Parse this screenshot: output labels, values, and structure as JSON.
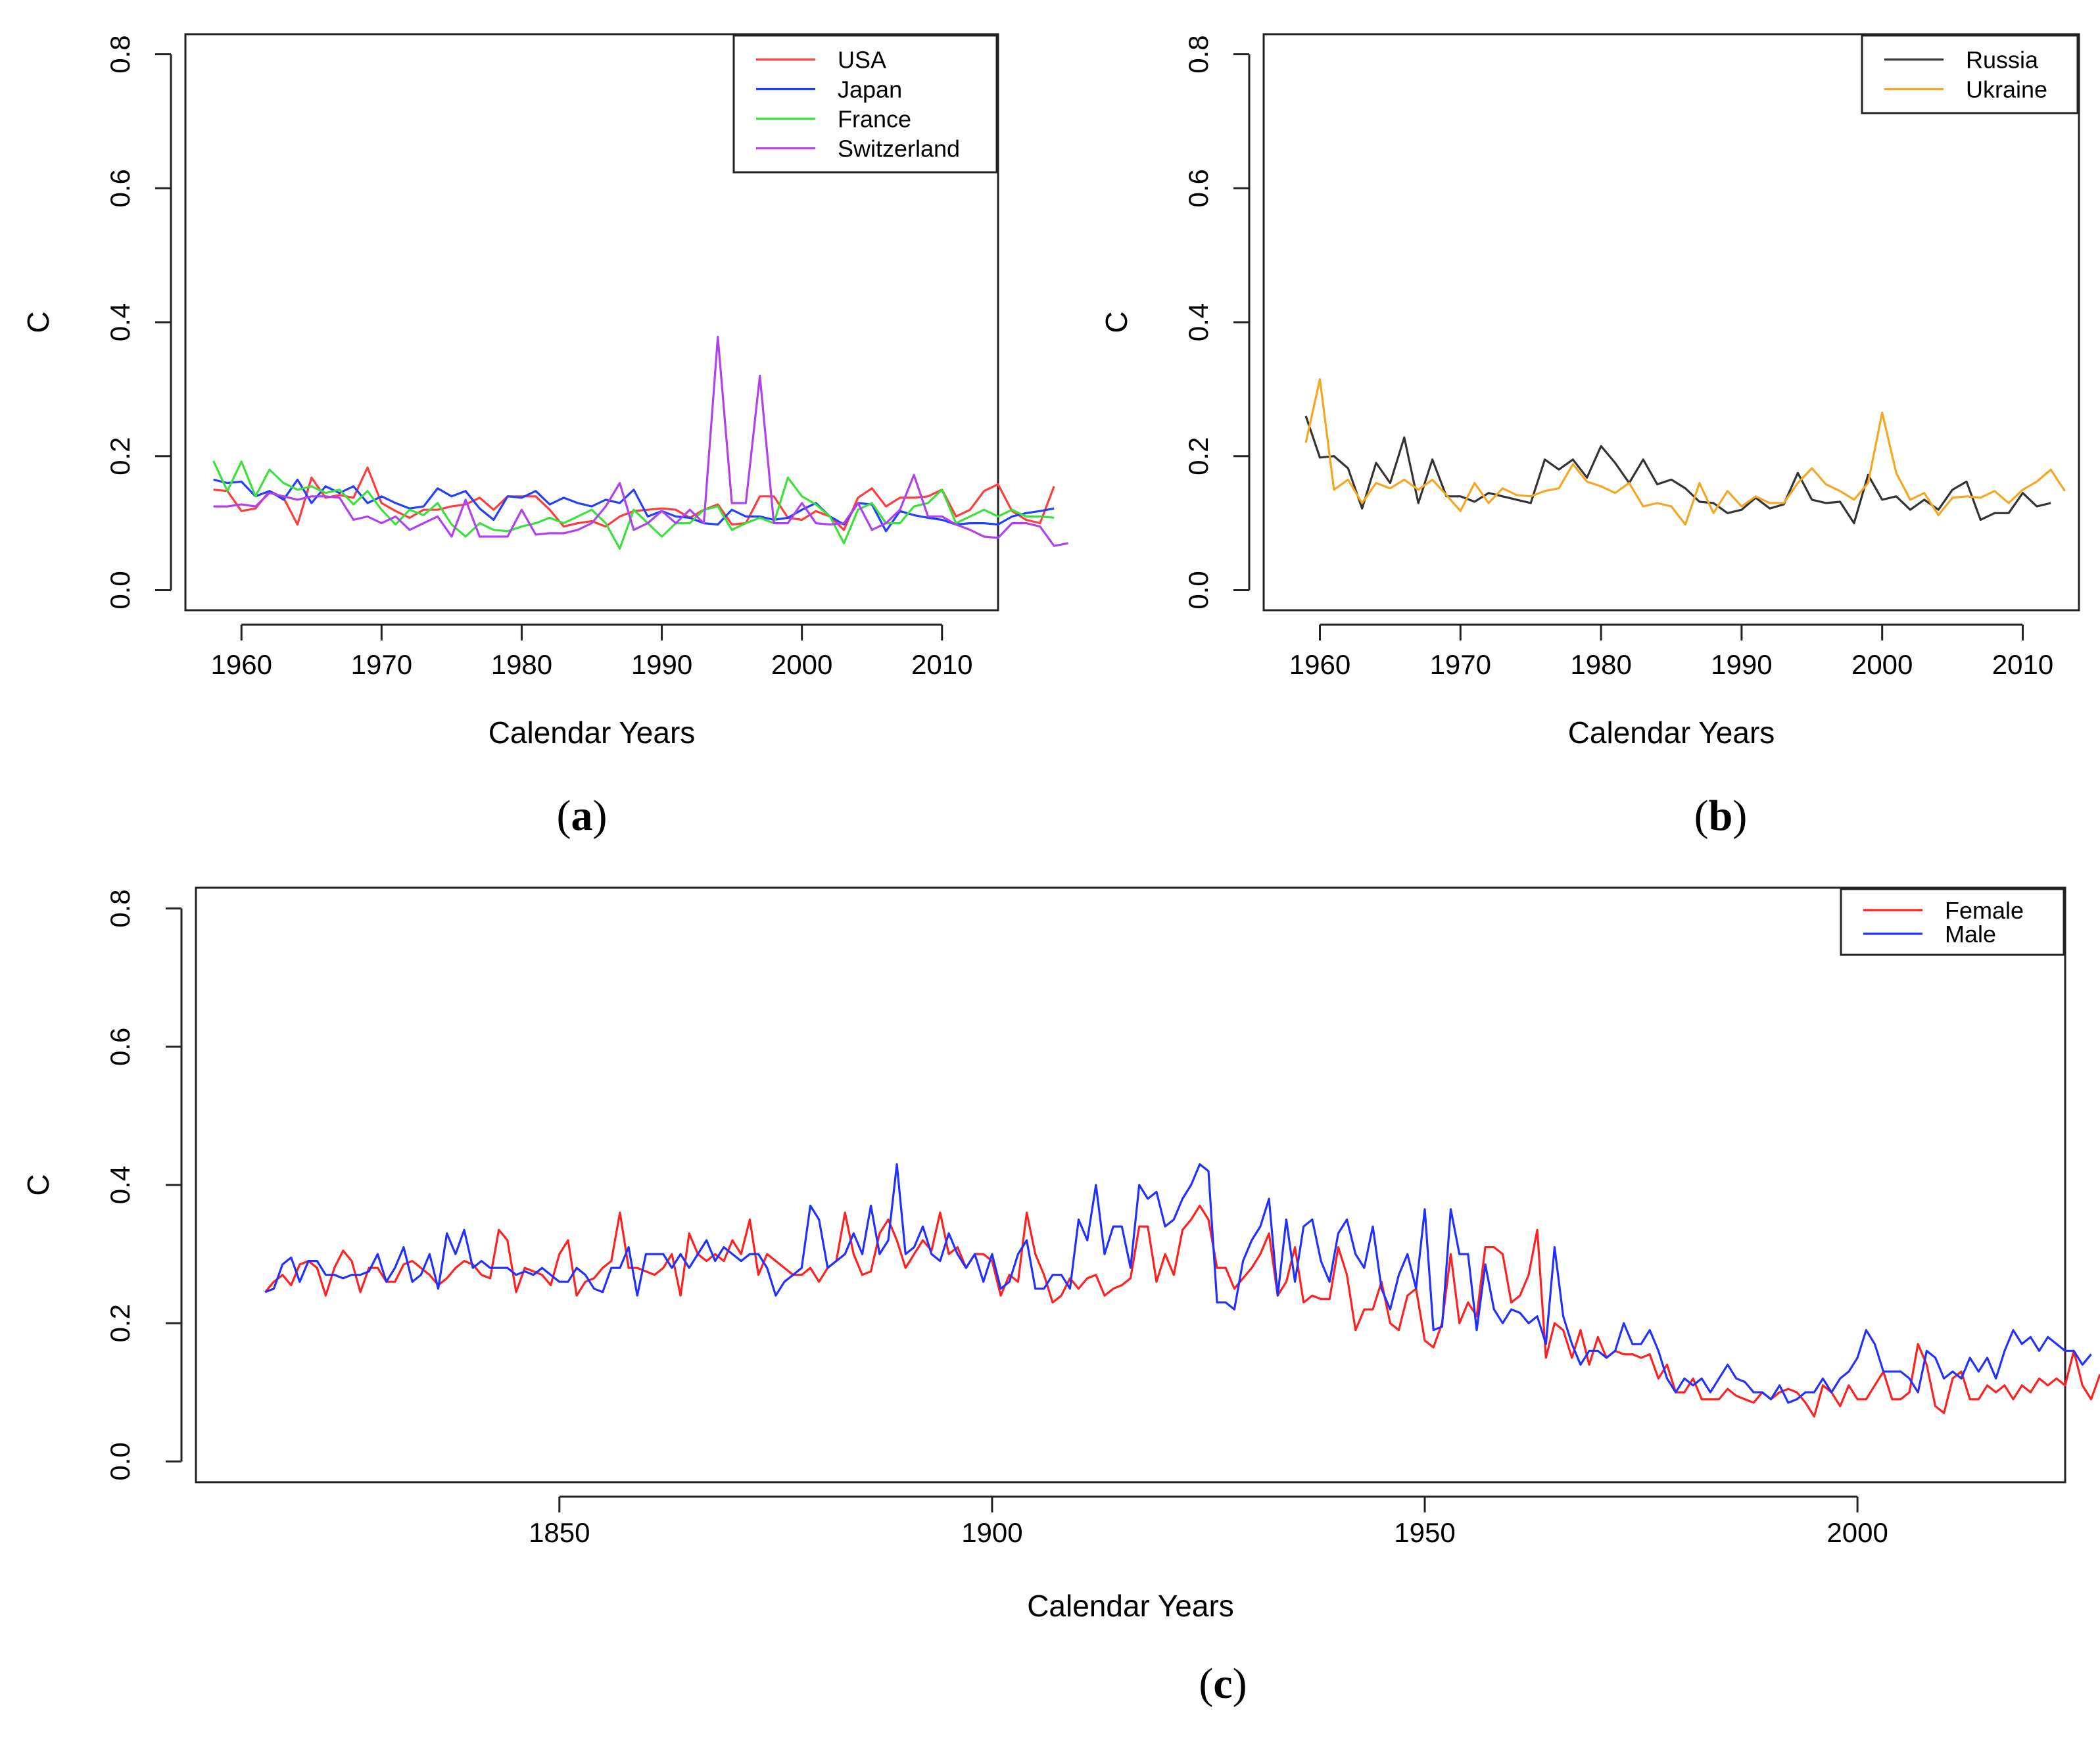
{
  "chart_data": [
    {
      "panel": "a",
      "type": "line",
      "caption_letter": "a",
      "xlabel": "Calendar Years",
      "ylabel": "C",
      "xlim": [
        1956,
        2014
      ],
      "ylim": [
        -0.03,
        0.83
      ],
      "xticks": [
        1960,
        1970,
        1980,
        1990,
        2000,
        2010
      ],
      "yticks": [
        "0.0",
        "0.2",
        "0.4",
        "0.6",
        "0.8"
      ],
      "legend_position": "top-right",
      "x_start": 1958,
      "series": [
        {
          "name": "USA",
          "color": "#ff3b3b",
          "values": [
            0.15,
            0.148,
            0.118,
            0.122,
            0.148,
            0.138,
            0.098,
            0.168,
            0.138,
            0.142,
            0.138,
            0.183,
            0.13,
            0.118,
            0.108,
            0.12,
            0.12,
            0.125,
            0.128,
            0.138,
            0.12,
            0.14,
            0.14,
            0.14,
            0.12,
            0.095,
            0.1,
            0.103,
            0.095,
            0.11,
            0.118,
            0.12,
            0.122,
            0.12,
            0.108,
            0.12,
            0.128,
            0.098,
            0.1,
            0.14,
            0.14,
            0.108,
            0.105,
            0.118,
            0.11,
            0.09,
            0.138,
            0.152,
            0.125,
            0.138,
            0.138,
            0.14,
            0.15,
            0.11,
            0.12,
            0.148,
            0.158,
            0.118,
            0.105,
            0.1,
            0.155
          ]
        },
        {
          "name": "Japan",
          "color": "#2040ff",
          "values": [
            0.165,
            0.16,
            0.162,
            0.14,
            0.148,
            0.135,
            0.165,
            0.13,
            0.155,
            0.145,
            0.155,
            0.13,
            0.14,
            0.13,
            0.122,
            0.125,
            0.152,
            0.14,
            0.148,
            0.122,
            0.105,
            0.14,
            0.138,
            0.148,
            0.128,
            0.138,
            0.13,
            0.125,
            0.135,
            0.13,
            0.15,
            0.11,
            0.118,
            0.11,
            0.108,
            0.1,
            0.098,
            0.12,
            0.11,
            0.11,
            0.105,
            0.108,
            0.12,
            0.13,
            0.11,
            0.098,
            0.13,
            0.128,
            0.088,
            0.118,
            0.112,
            0.108,
            0.105,
            0.098,
            0.1,
            0.1,
            0.098,
            0.11,
            0.115,
            0.118,
            0.122
          ]
        },
        {
          "name": "France",
          "color": "#3ce03c",
          "values": [
            0.193,
            0.148,
            0.192,
            0.14,
            0.18,
            0.16,
            0.15,
            0.155,
            0.145,
            0.15,
            0.128,
            0.148,
            0.12,
            0.098,
            0.12,
            0.112,
            0.13,
            0.098,
            0.08,
            0.1,
            0.09,
            0.088,
            0.095,
            0.1,
            0.108,
            0.1,
            0.11,
            0.12,
            0.1,
            0.062,
            0.12,
            0.1,
            0.08,
            0.1,
            0.1,
            0.12,
            0.125,
            0.09,
            0.1,
            0.108,
            0.1,
            0.168,
            0.14,
            0.128,
            0.11,
            0.07,
            0.12,
            0.13,
            0.1,
            0.1,
            0.125,
            0.13,
            0.15,
            0.1,
            0.11,
            0.12,
            0.11,
            0.12,
            0.11,
            0.11,
            0.108
          ]
        },
        {
          "name": "Switzerland",
          "color": "#b040f0",
          "values": [
            0.125,
            0.125,
            0.128,
            0.125,
            0.145,
            0.14,
            0.135,
            0.14,
            0.14,
            0.138,
            0.105,
            0.11,
            0.1,
            0.11,
            0.09,
            0.1,
            0.11,
            0.08,
            0.135,
            0.08,
            0.08,
            0.08,
            0.12,
            0.083,
            0.085,
            0.085,
            0.09,
            0.1,
            0.125,
            0.16,
            0.09,
            0.1,
            0.118,
            0.1,
            0.12,
            0.1,
            0.378,
            0.13,
            0.13,
            0.32,
            0.1,
            0.1,
            0.13,
            0.1,
            0.098,
            0.1,
            0.13,
            0.09,
            0.1,
            0.12,
            0.172,
            0.11,
            0.11,
            0.098,
            0.09,
            0.08,
            0.078,
            0.1,
            0.1,
            0.095,
            0.066,
            0.07
          ]
        }
      ]
    },
    {
      "panel": "b",
      "type": "line",
      "caption_letter": "b",
      "xlabel": "Calendar Years",
      "ylabel": "C",
      "xlim": [
        1956,
        2014
      ],
      "ylim": [
        -0.03,
        0.83
      ],
      "xticks": [
        1960,
        1970,
        1980,
        1990,
        2000,
        2010
      ],
      "yticks": [
        "0.0",
        "0.2",
        "0.4",
        "0.6",
        "0.8"
      ],
      "legend_position": "top-right",
      "x_start": 1959,
      "series": [
        {
          "name": "Russia",
          "color": "#333333",
          "values": [
            0.26,
            0.198,
            0.2,
            0.182,
            0.122,
            0.19,
            0.16,
            0.228,
            0.13,
            0.195,
            0.14,
            0.14,
            0.132,
            0.145,
            0.14,
            0.135,
            0.13,
            0.195,
            0.18,
            0.195,
            0.168,
            0.215,
            0.19,
            0.16,
            0.195,
            0.158,
            0.165,
            0.152,
            0.132,
            0.13,
            0.115,
            0.12,
            0.138,
            0.122,
            0.128,
            0.175,
            0.135,
            0.13,
            0.132,
            0.1,
            0.172,
            0.135,
            0.14,
            0.12,
            0.135,
            0.12,
            0.15,
            0.162,
            0.105,
            0.115,
            0.115,
            0.145,
            0.125,
            0.13
          ]
        },
        {
          "name": "Ukraine",
          "color": "#f5a623",
          "values": [
            0.22,
            0.315,
            0.15,
            0.165,
            0.13,
            0.16,
            0.152,
            0.165,
            0.15,
            0.165,
            0.142,
            0.118,
            0.16,
            0.13,
            0.152,
            0.142,
            0.14,
            0.148,
            0.152,
            0.188,
            0.162,
            0.155,
            0.145,
            0.16,
            0.125,
            0.13,
            0.125,
            0.098,
            0.16,
            0.115,
            0.148,
            0.125,
            0.14,
            0.13,
            0.13,
            0.16,
            0.182,
            0.158,
            0.148,
            0.135,
            0.16,
            0.265,
            0.175,
            0.135,
            0.145,
            0.112,
            0.138,
            0.14,
            0.138,
            0.148,
            0.13,
            0.15,
            0.162,
            0.18,
            0.148
          ]
        }
      ]
    },
    {
      "panel": "c",
      "type": "line",
      "caption_letter": "c",
      "xlabel": "Calendar Years",
      "ylabel": "C",
      "xlim": [
        1808,
        2024
      ],
      "ylim": [
        -0.03,
        0.83
      ],
      "xticks": [
        1850,
        1900,
        1950,
        2000
      ],
      "yticks": [
        "0.0",
        "0.2",
        "0.4",
        "0.6",
        "0.8"
      ],
      "legend_position": "top-right",
      "x_start": 1816,
      "series": [
        {
          "name": "Female",
          "color": "#ff2020",
          "values": [
            0.245,
            0.26,
            0.27,
            0.255,
            0.285,
            0.29,
            0.28,
            0.24,
            0.28,
            0.305,
            0.29,
            0.245,
            0.28,
            0.28,
            0.26,
            0.26,
            0.285,
            0.29,
            0.28,
            0.27,
            0.255,
            0.265,
            0.28,
            0.29,
            0.285,
            0.27,
            0.265,
            0.335,
            0.32,
            0.245,
            0.28,
            0.275,
            0.27,
            0.255,
            0.3,
            0.32,
            0.24,
            0.26,
            0.265,
            0.28,
            0.29,
            0.36,
            0.28,
            0.28,
            0.275,
            0.27,
            0.28,
            0.3,
            0.24,
            0.33,
            0.3,
            0.29,
            0.3,
            0.29,
            0.32,
            0.3,
            0.35,
            0.27,
            0.3,
            0.29,
            0.28,
            0.27,
            0.27,
            0.28,
            0.26,
            0.28,
            0.29,
            0.36,
            0.3,
            0.27,
            0.275,
            0.33,
            0.35,
            0.32,
            0.28,
            0.3,
            0.32,
            0.305,
            0.36,
            0.3,
            0.31,
            0.28,
            0.3,
            0.3,
            0.29,
            0.24,
            0.27,
            0.26,
            0.36,
            0.3,
            0.27,
            0.23,
            0.24,
            0.265,
            0.25,
            0.265,
            0.27,
            0.24,
            0.25,
            0.255,
            0.265,
            0.34,
            0.34,
            0.26,
            0.3,
            0.27,
            0.335,
            0.35,
            0.37,
            0.35,
            0.28,
            0.28,
            0.25,
            0.265,
            0.28,
            0.3,
            0.33,
            0.24,
            0.26,
            0.31,
            0.23,
            0.24,
            0.235,
            0.235,
            0.31,
            0.27,
            0.19,
            0.22,
            0.22,
            0.26,
            0.2,
            0.19,
            0.24,
            0.25,
            0.175,
            0.165,
            0.2,
            0.3,
            0.2,
            0.23,
            0.21,
            0.31,
            0.31,
            0.3,
            0.23,
            0.24,
            0.27,
            0.335,
            0.15,
            0.2,
            0.19,
            0.15,
            0.19,
            0.14,
            0.18,
            0.15,
            0.16,
            0.155,
            0.155,
            0.15,
            0.155,
            0.12,
            0.14,
            0.1,
            0.1,
            0.12,
            0.09,
            0.09,
            0.09,
            0.105,
            0.095,
            0.09,
            0.085,
            0.1,
            0.09,
            0.1,
            0.105,
            0.1,
            0.085,
            0.065,
            0.11,
            0.1,
            0.08,
            0.11,
            0.09,
            0.09,
            0.11,
            0.13,
            0.09,
            0.09,
            0.1,
            0.17,
            0.14,
            0.08,
            0.07,
            0.12,
            0.13,
            0.09,
            0.09,
            0.11,
            0.1,
            0.11,
            0.09,
            0.11,
            0.1,
            0.12,
            0.11,
            0.12,
            0.11,
            0.16,
            0.11,
            0.09,
            0.125,
            0.13
          ]
        },
        {
          "name": "Male",
          "color": "#2030ff",
          "values": [
            0.245,
            0.25,
            0.285,
            0.295,
            0.26,
            0.29,
            0.29,
            0.27,
            0.27,
            0.265,
            0.27,
            0.27,
            0.275,
            0.3,
            0.26,
            0.28,
            0.31,
            0.26,
            0.27,
            0.3,
            0.25,
            0.33,
            0.3,
            0.335,
            0.28,
            0.29,
            0.28,
            0.28,
            0.28,
            0.27,
            0.275,
            0.27,
            0.28,
            0.27,
            0.26,
            0.26,
            0.28,
            0.27,
            0.25,
            0.245,
            0.28,
            0.28,
            0.31,
            0.24,
            0.3,
            0.3,
            0.3,
            0.28,
            0.3,
            0.28,
            0.3,
            0.32,
            0.29,
            0.31,
            0.3,
            0.29,
            0.3,
            0.3,
            0.28,
            0.24,
            0.26,
            0.27,
            0.28,
            0.37,
            0.35,
            0.28,
            0.29,
            0.3,
            0.33,
            0.3,
            0.37,
            0.3,
            0.32,
            0.43,
            0.3,
            0.31,
            0.34,
            0.3,
            0.29,
            0.33,
            0.3,
            0.28,
            0.3,
            0.26,
            0.3,
            0.25,
            0.26,
            0.3,
            0.32,
            0.25,
            0.25,
            0.27,
            0.27,
            0.25,
            0.35,
            0.32,
            0.4,
            0.3,
            0.34,
            0.34,
            0.28,
            0.4,
            0.38,
            0.39,
            0.34,
            0.35,
            0.38,
            0.4,
            0.43,
            0.42,
            0.23,
            0.23,
            0.22,
            0.29,
            0.32,
            0.34,
            0.38,
            0.24,
            0.35,
            0.26,
            0.34,
            0.35,
            0.29,
            0.26,
            0.33,
            0.35,
            0.3,
            0.28,
            0.34,
            0.25,
            0.22,
            0.27,
            0.3,
            0.25,
            0.365,
            0.19,
            0.195,
            0.365,
            0.3,
            0.3,
            0.19,
            0.285,
            0.22,
            0.2,
            0.22,
            0.215,
            0.2,
            0.21,
            0.17,
            0.31,
            0.21,
            0.17,
            0.14,
            0.16,
            0.16,
            0.15,
            0.16,
            0.2,
            0.17,
            0.17,
            0.19,
            0.16,
            0.12,
            0.1,
            0.12,
            0.11,
            0.12,
            0.1,
            0.12,
            0.14,
            0.12,
            0.115,
            0.1,
            0.1,
            0.09,
            0.11,
            0.085,
            0.09,
            0.1,
            0.1,
            0.12,
            0.1,
            0.12,
            0.13,
            0.15,
            0.19,
            0.17,
            0.13,
            0.13,
            0.13,
            0.12,
            0.1,
            0.16,
            0.15,
            0.12,
            0.13,
            0.12,
            0.15,
            0.13,
            0.15,
            0.12,
            0.16,
            0.19,
            0.17,
            0.18,
            0.16,
            0.18,
            0.17,
            0.16,
            0.16,
            0.14,
            0.155
          ]
        }
      ]
    }
  ]
}
